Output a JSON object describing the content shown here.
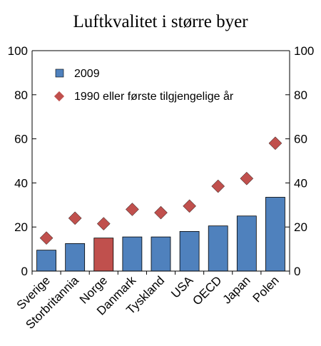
{
  "chart_data": {
    "type": "bar",
    "title": "Luftkvalitet i større byer",
    "categories": [
      "Sverige",
      "Storbritannia",
      "Norge",
      "Danmark",
      "Tyskland",
      "USA",
      "OECD",
      "Japan",
      "Polen"
    ],
    "highlight_category": "Norge",
    "ylim": [
      0,
      100
    ],
    "yticks": [
      0,
      20,
      40,
      60,
      80,
      100
    ],
    "grid": false,
    "legend_position": "top-left",
    "series": [
      {
        "name": "2009",
        "kind": "bar",
        "values": [
          9.5,
          12.5,
          15,
          15.5,
          15.5,
          18,
          20.5,
          25,
          33.5
        ]
      },
      {
        "name": "1990 eller første tilgjengelige år",
        "kind": "marker",
        "values": [
          15,
          24,
          21.5,
          28,
          26.5,
          29.5,
          38.5,
          42,
          58
        ]
      }
    ],
    "colors": {
      "bar": "#4f81bd",
      "bar_highlight": "#c0504d",
      "marker": "#c0504d",
      "axis": "#000000"
    }
  }
}
